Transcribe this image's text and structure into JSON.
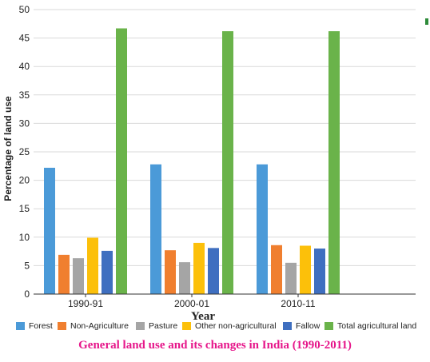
{
  "caption": "General land use and its changes in India (1990-2011)",
  "chart_data": {
    "type": "bar",
    "title": "",
    "xlabel": "Year",
    "ylabel": "Percentage of land use",
    "ylim": [
      0,
      50
    ],
    "yticks": [
      "0",
      "5",
      "10",
      "15",
      "20",
      "25",
      "30",
      "35",
      "40",
      "45",
      "50"
    ],
    "grid": true,
    "legend_position": "bottom",
    "categories": [
      "1990-91",
      "2000-01",
      "2010-11"
    ],
    "series": [
      {
        "name": "Forest",
        "color": "#4b9ad8",
        "values": [
          22.2,
          22.8,
          22.8
        ]
      },
      {
        "name": "Non-Agriculture",
        "color": "#f07f2f",
        "values": [
          6.9,
          7.7,
          8.6
        ]
      },
      {
        "name": "Pasture",
        "color": "#a5a5a5",
        "values": [
          6.3,
          5.6,
          5.5
        ]
      },
      {
        "name": "Other non-agricultural",
        "color": "#fcc00a",
        "values": [
          9.9,
          9.0,
          8.5
        ]
      },
      {
        "name": "Fallow",
        "color": "#3f6fc0",
        "values": [
          7.6,
          8.1,
          8.0
        ]
      },
      {
        "name": "Total agricultural land",
        "color": "#6ab34a",
        "values": [
          46.7,
          46.2,
          46.2
        ]
      }
    ]
  }
}
